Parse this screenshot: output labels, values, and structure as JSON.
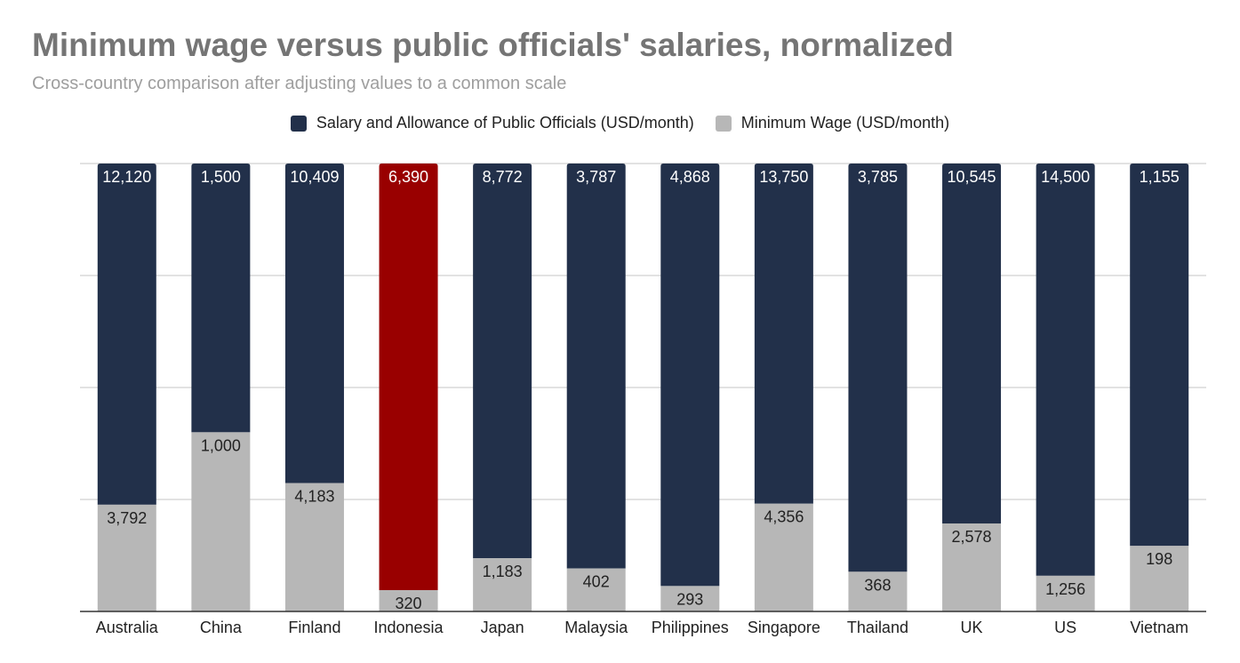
{
  "chart_data": {
    "type": "bar",
    "stacked": true,
    "normalized": true,
    "title": "Minimum wage versus public officials' salaries, normalized",
    "subtitle": "Cross-country comparison after adjusting values to a common scale",
    "legend_position": "top",
    "grid": true,
    "ylim": [
      0,
      1
    ],
    "categories": [
      "Australia",
      "China",
      "Finland",
      "Indonesia",
      "Japan",
      "Malaysia",
      "Philippines",
      "Singapore",
      "Thailand",
      "UK",
      "US",
      "Vietnam"
    ],
    "series": [
      {
        "name": "Minimum Wage (USD/month)",
        "color": "#b7b7b7",
        "values": [
          3792,
          1000,
          4183,
          320,
          1183,
          402,
          293,
          4356,
          368,
          2578,
          1256,
          198
        ],
        "labels": [
          "3,792",
          "1,000",
          "4,183",
          "320",
          "1,183",
          "402",
          "293",
          "4,356",
          "368",
          "2,578",
          "1,256",
          "198"
        ]
      },
      {
        "name": "Salary and Allowance of Public Officials (USD/month)",
        "color": "#22304a",
        "highlight": {
          "category": "Indonesia",
          "color": "#990000"
        },
        "values": [
          12120,
          1500,
          10409,
          6390,
          8772,
          3787,
          4868,
          13750,
          3785,
          10545,
          14500,
          1155
        ],
        "labels": [
          "12,120",
          "1,500",
          "10,409",
          "6,390",
          "8,772",
          "3,787",
          "4,868",
          "13,750",
          "3,785",
          "10,545",
          "14,500",
          "1,155"
        ]
      }
    ]
  }
}
